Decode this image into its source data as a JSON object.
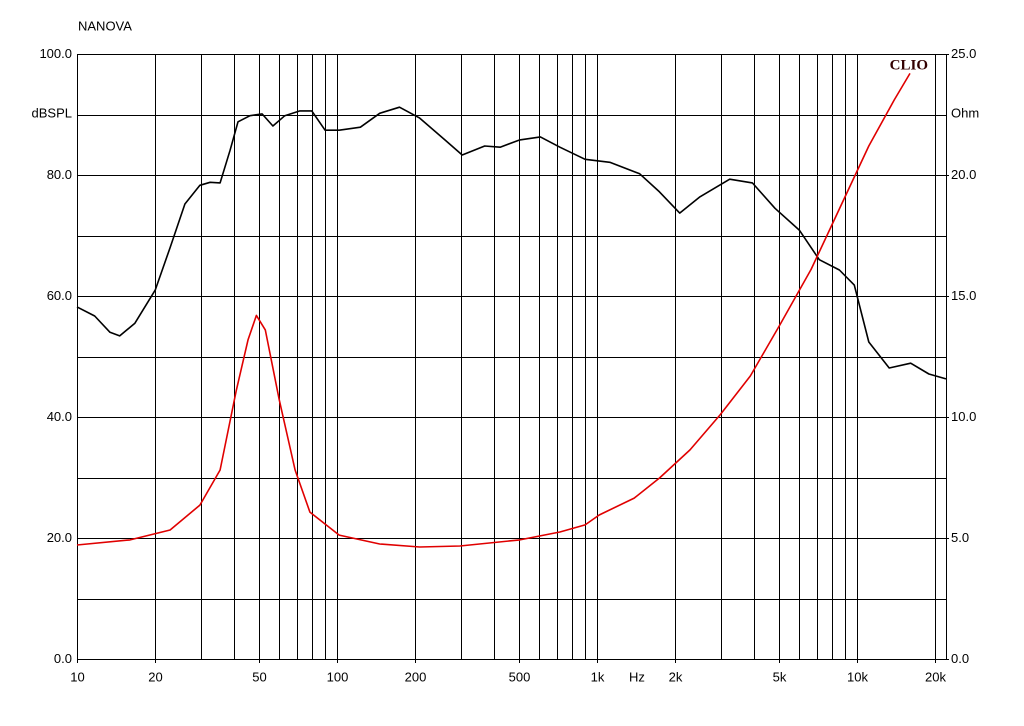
{
  "chart_data": {
    "type": "line",
    "title": "NANOVA",
    "annotation": "CLIO",
    "xlabel": "Hz",
    "ylabel": "dBSPL",
    "y2label": "Ohm",
    "xscale": "log",
    "grid": true,
    "xlim": [
      10,
      22000
    ],
    "ylim": [
      0,
      100
    ],
    "y2lim": [
      0,
      25
    ],
    "xticks": [
      10,
      20,
      50,
      100,
      200,
      500,
      {
        "value": 1000,
        "label": "1k"
      },
      {
        "value": 2000,
        "label": "2k"
      },
      {
        "value": 5000,
        "label": "5k"
      },
      {
        "value": 10000,
        "label": "10k"
      },
      {
        "value": 20000,
        "label": "20k"
      }
    ],
    "xminor": [
      10,
      20,
      30,
      40,
      50,
      60,
      70,
      80,
      90,
      100,
      200,
      300,
      400,
      500,
      600,
      700,
      800,
      900,
      1000,
      2000,
      3000,
      4000,
      5000,
      6000,
      7000,
      8000,
      9000,
      10000,
      20000
    ],
    "yticks": [
      {
        "value": 0,
        "label": "0.0"
      },
      {
        "value": 20,
        "label": "20.0"
      },
      {
        "value": 40,
        "label": "40.0"
      },
      {
        "value": 60,
        "label": "60.0"
      },
      {
        "value": 80,
        "label": "80.0"
      },
      {
        "value": 100,
        "label": "100.0"
      }
    ],
    "yminor": [
      10,
      30,
      50,
      70,
      90
    ],
    "y2ticks": [
      {
        "value": 0,
        "label": "0.0"
      },
      {
        "value": 5,
        "label": "5.0"
      },
      {
        "value": 10,
        "label": "10.0"
      },
      {
        "value": 15,
        "label": "15.0"
      },
      {
        "value": 20,
        "label": "20.0"
      },
      {
        "value": 25,
        "label": "25.0"
      }
    ],
    "series": [
      {
        "color": "#000000",
        "axis": "y",
        "x": [
          10,
          11.7,
          13.4,
          14.6,
          16.7,
          20,
          22.8,
          26,
          29.7,
          32.5,
          35.5,
          38.8,
          41.6,
          46.3,
          51.5,
          56.7,
          63,
          72,
          80,
          90,
          102,
          123,
          146,
          174,
          208,
          260,
          303,
          370,
          424,
          505,
          606,
          720,
          900,
          1120,
          1460,
          1740,
          2080,
          2490,
          3240,
          3960,
          4840,
          6000,
          7160,
          8560,
          9770,
          11100,
          13300,
          16100,
          18900,
          22000
        ],
        "values": [
          58.2,
          56.7,
          54,
          53.4,
          55.5,
          61,
          68,
          75.2,
          78.3,
          78.8,
          78.7,
          84.1,
          88.8,
          89.8,
          90.1,
          88.1,
          89.8,
          90.6,
          90.6,
          87.4,
          87.4,
          87.9,
          90.2,
          91.2,
          89.4,
          85.8,
          83.3,
          84.8,
          84.6,
          85.8,
          86.3,
          84.6,
          82.6,
          82.1,
          80.2,
          77.2,
          73.7,
          76.4,
          79.3,
          78.7,
          74.5,
          70.9,
          66,
          64.3,
          61.8,
          52.4,
          48.1,
          48.9,
          47.1,
          46.3
        ]
      },
      {
        "color": "#e00000",
        "axis": "y2",
        "x": [
          10,
          16,
          22.8,
          29.7,
          35.5,
          41,
          45.5,
          49,
          53,
          60,
          69,
          78.7,
          102,
          146,
          208,
          297,
          505,
          720,
          900,
          1020,
          1390,
          1740,
          2280,
          2980,
          3890,
          5050,
          6660,
          8560,
          11100,
          13900,
          16000
        ],
        "values": [
          4.71,
          4.92,
          5.33,
          6.36,
          7.81,
          11.1,
          13.2,
          14.2,
          13.6,
          10.7,
          7.81,
          6.07,
          5.12,
          4.75,
          4.63,
          4.67,
          4.92,
          5.25,
          5.54,
          5.95,
          6.65,
          7.48,
          8.64,
          10.1,
          11.7,
          13.8,
          16.1,
          18.6,
          21.2,
          23.1,
          24.2
        ]
      }
    ]
  }
}
